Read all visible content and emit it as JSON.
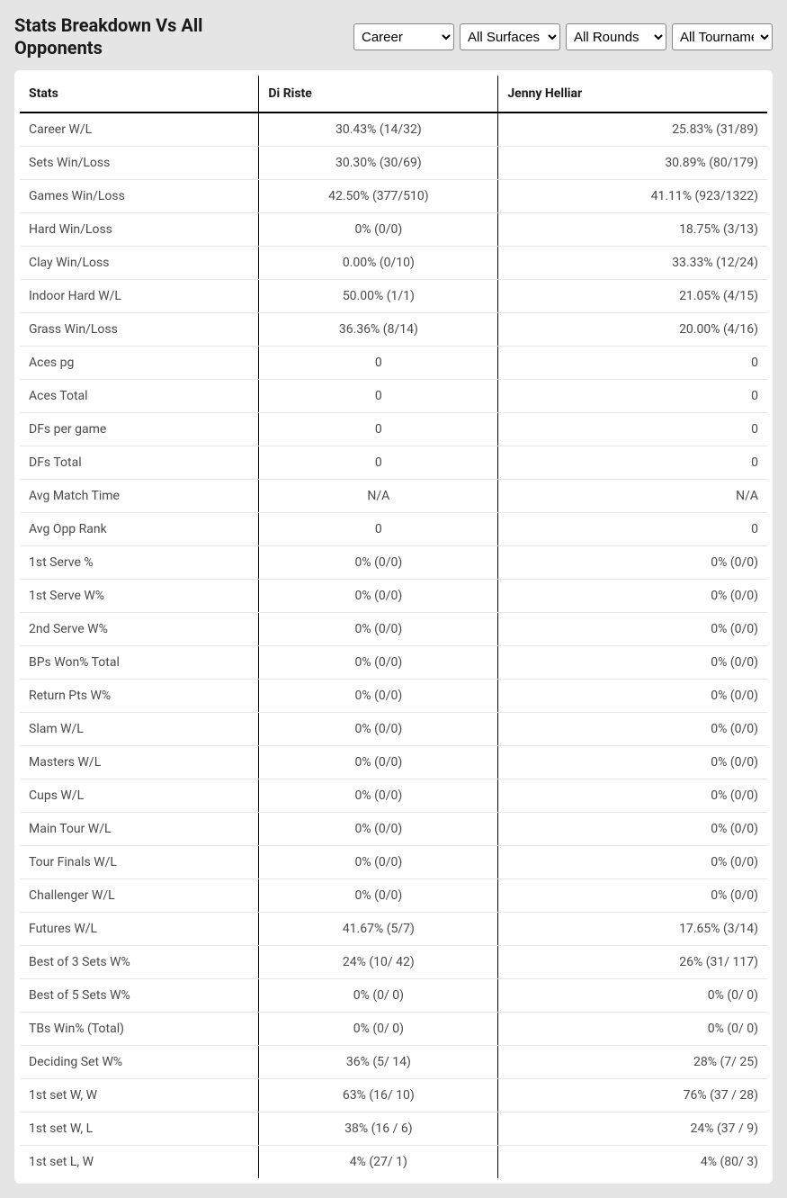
{
  "header": {
    "title": "Stats Breakdown Vs All Opponents",
    "filters": {
      "career": "Career",
      "surface": "All Surfaces",
      "rounds": "All Rounds",
      "tournaments": "All Tournaments"
    }
  },
  "table": {
    "columns": [
      "Stats",
      "Di Riste",
      "Jenny Helliar"
    ],
    "rows": [
      [
        "Career W/L",
        "30.43% (14/32)",
        "25.83% (31/89)"
      ],
      [
        "Sets Win/Loss",
        "30.30% (30/69)",
        "30.89% (80/179)"
      ],
      [
        "Games Win/Loss",
        "42.50% (377/510)",
        "41.11% (923/1322)"
      ],
      [
        "Hard Win/Loss",
        "0% (0/0)",
        "18.75% (3/13)"
      ],
      [
        "Clay Win/Loss",
        "0.00% (0/10)",
        "33.33% (12/24)"
      ],
      [
        "Indoor Hard W/L",
        "50.00% (1/1)",
        "21.05% (4/15)"
      ],
      [
        "Grass Win/Loss",
        "36.36% (8/14)",
        "20.00% (4/16)"
      ],
      [
        "Aces pg",
        "0",
        "0"
      ],
      [
        "Aces Total",
        "0",
        "0"
      ],
      [
        "DFs per game",
        "0",
        "0"
      ],
      [
        "DFs Total",
        "0",
        "0"
      ],
      [
        "Avg Match Time",
        "N/A",
        "N/A"
      ],
      [
        "Avg Opp Rank",
        "0",
        "0"
      ],
      [
        "1st Serve %",
        "0% (0/0)",
        "0% (0/0)"
      ],
      [
        "1st Serve W%",
        "0% (0/0)",
        "0% (0/0)"
      ],
      [
        "2nd Serve W%",
        "0% (0/0)",
        "0% (0/0)"
      ],
      [
        "BPs Won% Total",
        "0% (0/0)",
        "0% (0/0)"
      ],
      [
        "Return Pts W%",
        "0% (0/0)",
        "0% (0/0)"
      ],
      [
        "Slam W/L",
        "0% (0/0)",
        "0% (0/0)"
      ],
      [
        "Masters W/L",
        "0% (0/0)",
        "0% (0/0)"
      ],
      [
        "Cups W/L",
        "0% (0/0)",
        "0% (0/0)"
      ],
      [
        "Main Tour W/L",
        "0% (0/0)",
        "0% (0/0)"
      ],
      [
        "Tour Finals W/L",
        "0% (0/0)",
        "0% (0/0)"
      ],
      [
        "Challenger W/L",
        "0% (0/0)",
        "0% (0/0)"
      ],
      [
        "Futures W/L",
        "41.67% (5/7)",
        "17.65% (3/14)"
      ],
      [
        "Best of 3 Sets W%",
        "24% (10/ 42)",
        "26% (31/ 117)"
      ],
      [
        "Best of 5 Sets W%",
        "0% (0/ 0)",
        "0% (0/ 0)"
      ],
      [
        "TBs Win% (Total)",
        "0% (0/ 0)",
        "0% (0/ 0)"
      ],
      [
        "Deciding Set W%",
        "36% (5/ 14)",
        "28% (7/ 25)"
      ],
      [
        "1st set W, W",
        "63% (16/ 10)",
        "76% (37 / 28)"
      ],
      [
        "1st set W, L",
        "38% (16 / 6)",
        "24% (37 / 9)"
      ],
      [
        "1st set L, W",
        "4% (27/ 1)",
        "4% (80/ 3)"
      ]
    ]
  },
  "style": {
    "page_bg": "#e5e5e5",
    "card_bg": "#ffffff",
    "header_border": "#000000",
    "row_border": "#e6e6e6",
    "text_color": "#1a1a1a",
    "cell_text_color": "#4a4a4a",
    "title_fontsize": 20,
    "cell_fontsize": 14
  }
}
